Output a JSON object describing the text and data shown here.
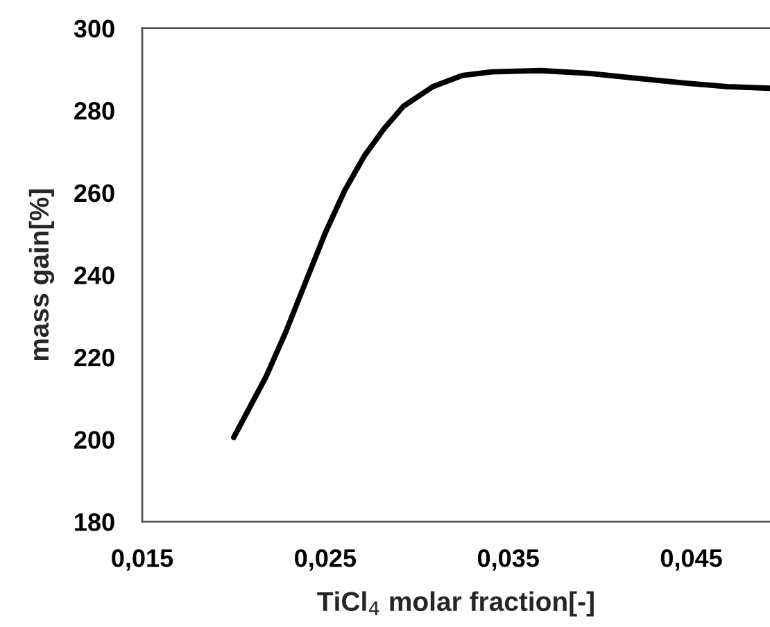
{
  "chart_data": {
    "type": "line",
    "xlabel": "TiCl$_{4}$ molar fraction[-]",
    "ylabel": "mass gain[%]",
    "x": [
      0.02,
      0.02177,
      0.02284,
      0.02392,
      0.025,
      0.02606,
      0.02713,
      0.0282,
      0.02927,
      0.03088,
      0.03248,
      0.03409,
      0.03677,
      0.03944,
      0.04212,
      0.0448,
      0.04694,
      0.0493
    ],
    "series": [
      {
        "color": "#000000",
        "values": [
          200.5,
          215.3,
          226.1,
          238.2,
          250.2,
          260.5,
          268.9,
          275.5,
          281.0,
          285.8,
          288.5,
          289.4,
          289.7,
          289.0,
          287.8,
          286.6,
          285.8,
          285.4
        ]
      }
    ],
    "xlim": [
      0.015,
      0.0493
    ],
    "xticks": [
      {
        "value": 0.015,
        "label": "0,015"
      },
      {
        "value": 0.025,
        "label": "0,025"
      },
      {
        "value": 0.035,
        "label": "0,035"
      },
      {
        "value": 0.045,
        "label": "0,045"
      }
    ],
    "ylim": [
      180,
      300
    ],
    "yticks": [
      180,
      200,
      220,
      240,
      260,
      280,
      300
    ],
    "grid": false,
    "legend": false,
    "marker": "none",
    "line_style": "solid"
  }
}
